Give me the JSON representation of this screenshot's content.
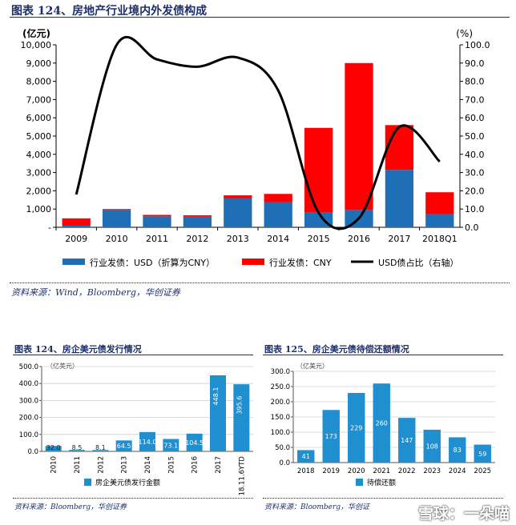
{
  "top": {
    "title": "图表 124、房地产行业境内外发债构成",
    "source": "资料来源：Wind，Bloomberg，华创证券"
  },
  "bottom_left": {
    "title": "图表 124、房企美元债发行情况",
    "source": "资料来源：Bloomberg，华创证券"
  },
  "bottom_right": {
    "title": "图表 125、房企美元债待偿还额情况",
    "source": "资料来源：Bloomberg，华创证"
  },
  "watermark": "雪球：一朵喵",
  "colors": {
    "blue": "#1f6fb7",
    "red": "#ff0000",
    "line": "#000000",
    "title": "#1c2f6b"
  },
  "chart_data": [
    {
      "type": "bar",
      "stacked": true,
      "title": "",
      "ylabel": "(亿元)",
      "y2label": "(%)",
      "ylim": [
        0,
        10000
      ],
      "y2lim": [
        0,
        100
      ],
      "yticks": [
        "-",
        "1,000",
        "2,000",
        "3,000",
        "4,000",
        "5,000",
        "6,000",
        "7,000",
        "8,000",
        "9,000",
        "10,000"
      ],
      "y2ticks": [
        "0.0",
        "10.0",
        "20.0",
        "30.0",
        "40.0",
        "50.0",
        "60.0",
        "70.0",
        "80.0",
        "90.0",
        "100.0"
      ],
      "categories": [
        "2009",
        "2010",
        "2011",
        "2012",
        "2013",
        "2014",
        "2015",
        "2016",
        "2017",
        "2018Q1"
      ],
      "series": [
        {
          "name": "行业发债：USD（折算为CNY）",
          "kind": "bar",
          "values": [
            90,
            950,
            600,
            580,
            1600,
            1380,
            800,
            950,
            3150,
            720
          ]
        },
        {
          "name": "行业发债：CNY",
          "kind": "bar",
          "values": [
            400,
            50,
            80,
            80,
            150,
            450,
            4650,
            8050,
            2450,
            1200
          ]
        },
        {
          "name": "USD债占比（右轴）",
          "kind": "line",
          "axis": "right",
          "values": [
            18,
            100,
            92,
            88,
            93,
            75,
            8,
            5,
            55,
            36
          ]
        }
      ],
      "legend": "bottom"
    },
    {
      "type": "bar",
      "title": "",
      "ylabel": "（亿美元）",
      "ylim": [
        0,
        500
      ],
      "yticks": [
        "0.0",
        "100.0",
        "200.0",
        "300.0",
        "400.0",
        "500.0"
      ],
      "categories": [
        "2010",
        "2011",
        "2012",
        "2013",
        "2014",
        "2015",
        "2016",
        "2017",
        "2018.11.6YTD"
      ],
      "series": [
        {
          "name": "房企美元债发行金额",
          "values": [
            32,
            8.5,
            8.1,
            64.5,
            114.0,
            73.1,
            104.5,
            448.1,
            395.6
          ]
        }
      ],
      "data_labels": [
        "32.0",
        "8.5",
        "8.1",
        "64.5",
        "114.0",
        "73.1",
        "104.5",
        "448.1",
        "395.6"
      ],
      "legend": "bottom"
    },
    {
      "type": "bar",
      "title": "",
      "ylabel": "（亿美元）",
      "ylim": [
        0,
        300
      ],
      "yticks": [
        "0.0",
        "50.0",
        "100.0",
        "150.0",
        "200.0",
        "250.0",
        "300.0"
      ],
      "categories": [
        "2018",
        "2019",
        "2020",
        "2021",
        "2022",
        "2023",
        "2024",
        "2025"
      ],
      "series": [
        {
          "name": "待偿还额",
          "values": [
            41,
            173,
            229,
            260,
            147,
            108,
            83,
            59
          ]
        }
      ],
      "data_labels": [
        "41",
        "173",
        "229",
        "260",
        "147",
        "108",
        "83",
        "59"
      ],
      "legend": "bottom"
    }
  ]
}
